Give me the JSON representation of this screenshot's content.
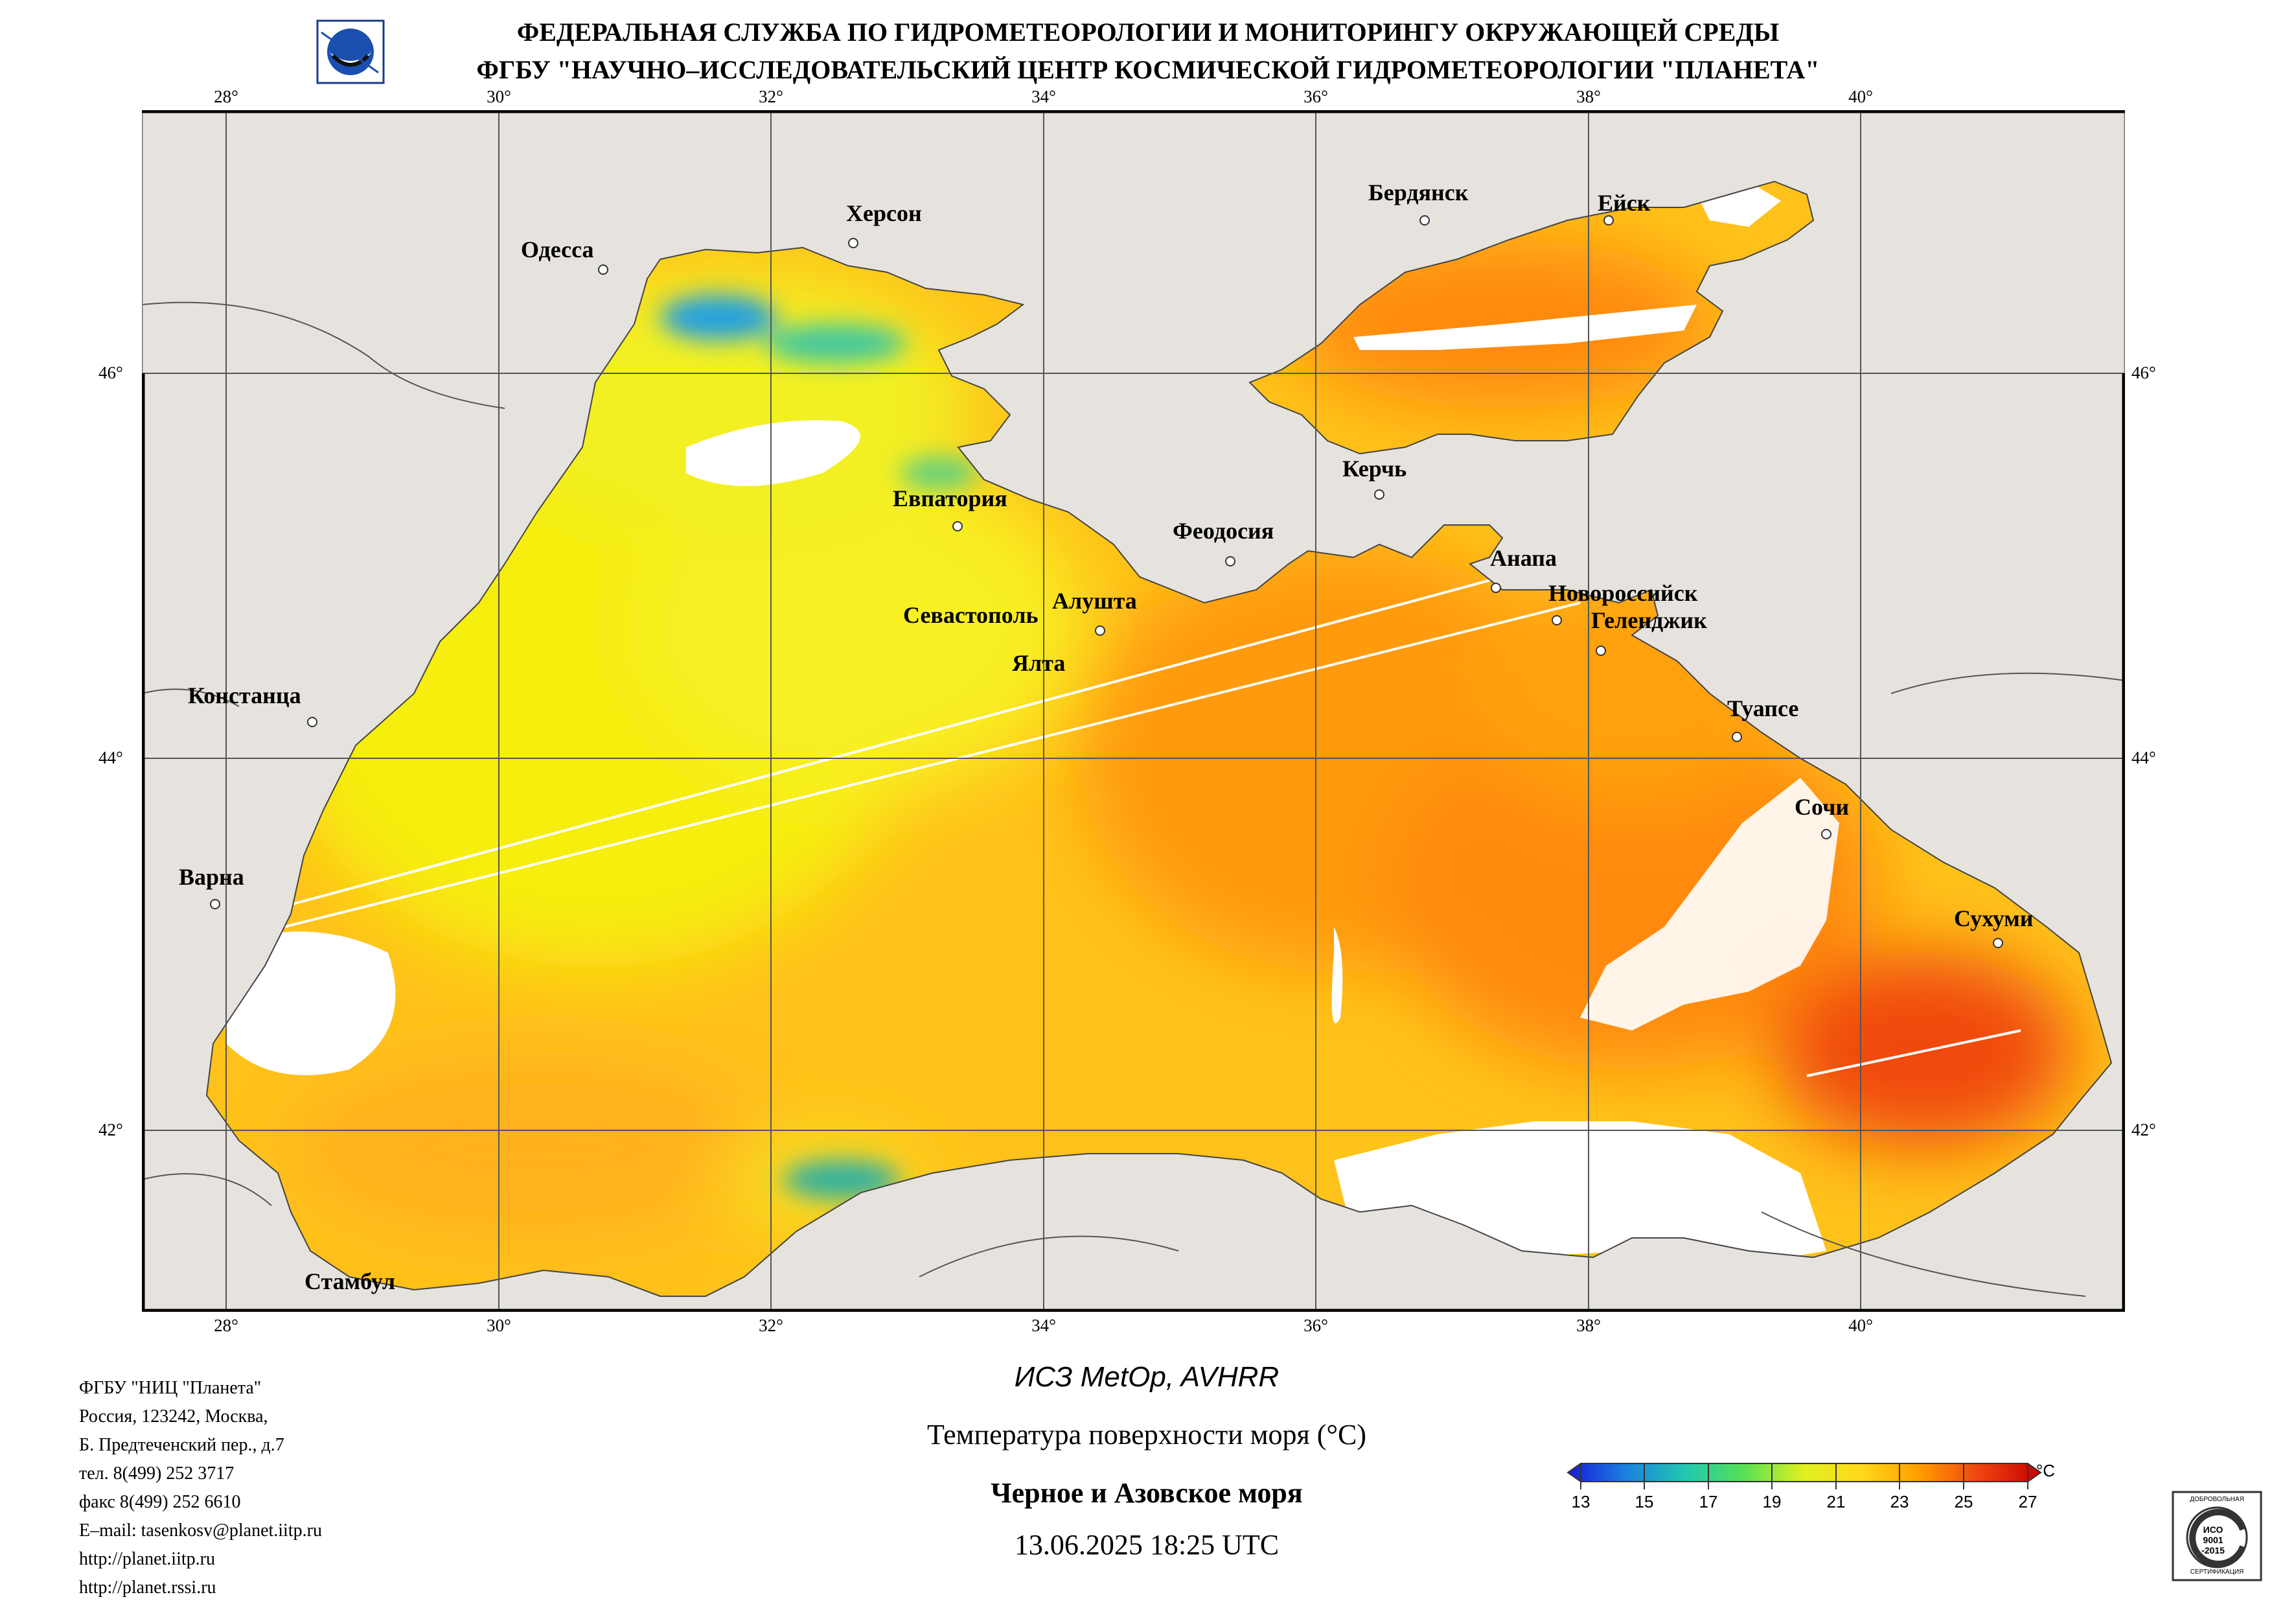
{
  "header": {
    "line1": "ФЕДЕРАЛЬНАЯ СЛУЖБА ПО ГИДРОМЕТЕОРОЛОГИИ И МОНИТОРИНГУ ОКРУЖАЮЩЕЙ СРЕДЫ",
    "line2": "ФГБУ \"НАУЧНО–ИССЛЕДОВАТЕЛЬСКИЙ ЦЕНТР КОСМИЧЕСКОЙ ГИДРОМЕТЕОРОЛОГИИ \"ПЛАНЕТА\""
  },
  "map": {
    "lon_labels": [
      "28°",
      "30°",
      "32°",
      "34°",
      "36°",
      "38°",
      "40°"
    ],
    "lat_labels": [
      "46°",
      "44°",
      "42°"
    ],
    "cities": [
      "Одесса",
      "Херсон",
      "Бердянск",
      "Ейск",
      "Керчь",
      "Евпатория",
      "Феодосия",
      "Анапа",
      "Новороссийск",
      "Геленджик",
      "Севастополь",
      "Алушта",
      "Ялта",
      "Констанца",
      "Туапсе",
      "Сочи",
      "Варна",
      "Сухуми",
      "Стамбул"
    ],
    "colors": {
      "land": "#e6e2dd",
      "grid": "#555555",
      "no_data": "#ffffff"
    }
  },
  "footer": {
    "org_lines": [
      "ФГБУ \"НИЦ \"Планета\"",
      "Россия, 123242, Москва,",
      "Б. Предтеченский пер., д.7",
      "тел. 8(499) 252 3717",
      "факс 8(499) 252 6610",
      "E–mail: tasenkosv@planet.iitp.ru",
      "http://planet.iitp.ru",
      "http://planet.rssi.ru"
    ],
    "satellite": "ИСЗ MetOp, AVHRR",
    "parameter": "Температура поверхности моря (°C)",
    "region": "Черное и Азовское моря",
    "datetime": "13.06.2025 18:25 UTC"
  },
  "colorbar": {
    "unit": "°C",
    "ticks": [
      "13",
      "15",
      "17",
      "19",
      "21",
      "23",
      "25",
      "27"
    ],
    "stops": [
      "#1a1ad8",
      "#1a7fe0",
      "#22c8b0",
      "#55e055",
      "#c8f020",
      "#ffe81a",
      "#ffb000",
      "#ff7a10",
      "#f03010",
      "#c80000"
    ]
  },
  "iso_badge": {
    "top_text": "ДОБРОВОЛЬНАЯ",
    "center_text": "ИСО 9001 -2015",
    "bottom_text": "СЕРТИФИКАЦИЯ"
  }
}
